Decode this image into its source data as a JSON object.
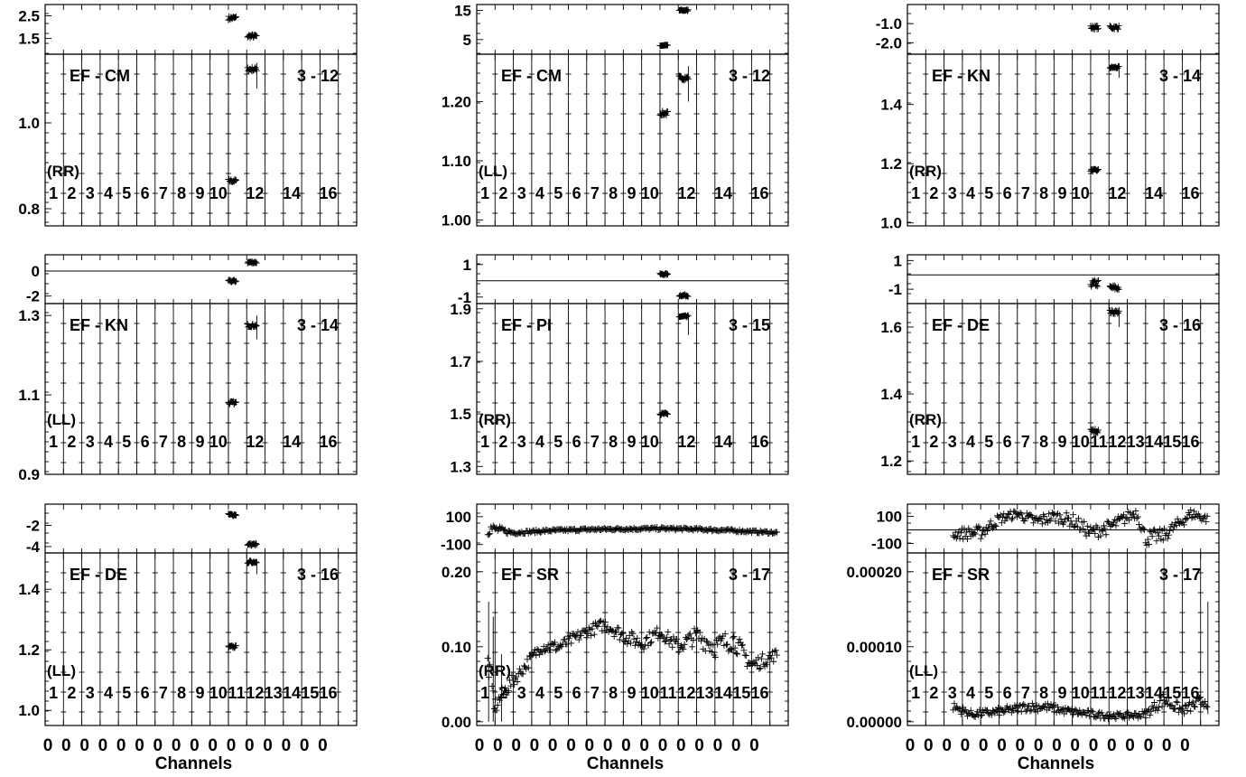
{
  "channel_labels_full": [
    "1",
    "2",
    "3",
    "4",
    "5",
    "6",
    "7",
    "8",
    "9",
    "10",
    "11",
    "12",
    "13",
    "14",
    "15",
    "16"
  ],
  "channel_labels_sparse": [
    "1",
    "2",
    "3",
    "4",
    "5",
    "6",
    "7",
    "8",
    "9",
    "10",
    "",
    "12",
    "",
    "14",
    "",
    "16"
  ],
  "bottom_ticks": [
    "0",
    "0",
    "0",
    "0",
    "0",
    "0",
    "0",
    "0",
    "0",
    "0",
    "0",
    "0",
    "0",
    "0",
    "0",
    "0"
  ],
  "x_axis_title": "Channels",
  "chart_data": [
    {
      "type": "scatter",
      "id": "p00",
      "baseline": "EF - CM",
      "scan": "3 - 12",
      "pol": "(RR)",
      "channel_labels": "sparse",
      "phase_ticks": [
        {
          "v": 2.5,
          "t": "2.5"
        },
        {
          "v": 1.5,
          "t": "1.5"
        }
      ],
      "phase_ylim": [
        0.8,
        3.0
      ],
      "amp_ticks": [
        {
          "v": 1.0,
          "t": "1.0"
        },
        {
          "v": 0.8,
          "t": "0.8"
        }
      ],
      "amp_ylim": [
        0.76,
        1.16
      ],
      "series_phase": [
        {
          "ch": [
            10,
            10.45
          ],
          "v": 2.4,
          "jit": 0.09
        },
        {
          "ch": [
            11.05,
            11.55
          ],
          "v": 1.6,
          "jit": 0.08
        }
      ],
      "series_amp": [
        {
          "ch": [
            10,
            10.45
          ],
          "v": 0.865,
          "jit": 0.004
        },
        {
          "ch": [
            11.05,
            11.55
          ],
          "v": 1.125,
          "jit": 0.005
        }
      ],
      "spikes": [
        {
          "ch": 10,
          "lo": 0.76,
          "hi": 1.16
        },
        {
          "ch": 11.55,
          "lo": 1.08,
          "hi": 1.14
        }
      ]
    },
    {
      "type": "scatter",
      "id": "p01",
      "baseline": "EF - CM",
      "scan": "3 - 12",
      "pol": "(LL)",
      "channel_labels": "sparse",
      "phase_ticks": [
        {
          "v": 15,
          "t": "15"
        },
        {
          "v": 5,
          "t": "5"
        }
      ],
      "phase_ylim": [
        0,
        17
      ],
      "amp_ticks": [
        {
          "v": 1.2,
          "t": "1.20"
        },
        {
          "v": 1.1,
          "t": "1.10"
        },
        {
          "v": 1.0,
          "t": "1.00"
        }
      ],
      "amp_ylim": [
        0.99,
        1.28
      ],
      "series_phase": [
        {
          "ch": [
            10,
            10.45
          ],
          "v": 3,
          "jit": 0.3
        },
        {
          "ch": [
            11.05,
            11.55
          ],
          "v": 15,
          "jit": 0.3
        }
      ],
      "series_amp": [
        {
          "ch": [
            10,
            10.45
          ],
          "v": 1.18,
          "jit": 0.004
        },
        {
          "ch": [
            11.05,
            11.55
          ],
          "v": 1.24,
          "jit": 0.004
        }
      ],
      "spikes": [
        {
          "ch": 10,
          "lo": 0.99,
          "hi": 1.28
        },
        {
          "ch": 11.55,
          "lo": 1.2,
          "hi": 1.26
        }
      ]
    },
    {
      "type": "scatter",
      "id": "p02",
      "baseline": "EF - KN",
      "scan": "3 - 14",
      "pol": "(RR)",
      "channel_labels": "sparse",
      "phase_ticks": [
        {
          "v": -1.0,
          "t": "-1.0"
        },
        {
          "v": -2.0,
          "t": "-2.0"
        }
      ],
      "phase_ylim": [
        -2.6,
        0.0
      ],
      "amp_ticks": [
        {
          "v": 1.4,
          "t": "1.4"
        },
        {
          "v": 1.2,
          "t": "1.2"
        },
        {
          "v": 1.0,
          "t": "1.0"
        }
      ],
      "amp_ylim": [
        0.99,
        1.57
      ],
      "series_phase": [
        {
          "ch": [
            10,
            10.45
          ],
          "v": -1.2,
          "jit": 0.1
        },
        {
          "ch": [
            11.05,
            11.55
          ],
          "v": -1.2,
          "jit": 0.1
        }
      ],
      "series_amp": [
        {
          "ch": [
            10,
            10.45
          ],
          "v": 1.178,
          "jit": 0.004
        },
        {
          "ch": [
            11.05,
            11.55
          ],
          "v": 1.525,
          "jit": 0.004
        }
      ],
      "spikes": [
        {
          "ch": 10,
          "lo": 0.99,
          "hi": 1.1
        },
        {
          "ch": 11.55,
          "lo": 1.49,
          "hi": 1.54
        }
      ]
    },
    {
      "type": "scatter",
      "id": "p10",
      "baseline": "EF - KN",
      "scan": "3 - 14",
      "pol": "(LL)",
      "channel_labels": "sparse",
      "phase_ticks": [
        {
          "v": 0,
          "t": "0"
        },
        {
          "v": -2,
          "t": "-2"
        }
      ],
      "phase_ylim": [
        -2.6,
        1.3
      ],
      "phase_zero": 0,
      "amp_ticks": [
        {
          "v": 1.3,
          "t": "1.3"
        },
        {
          "v": 1.1,
          "t": "1.1"
        },
        {
          "v": 0.9,
          "t": "0.9"
        }
      ],
      "amp_ylim": [
        0.9,
        1.33
      ],
      "series_phase": [
        {
          "ch": [
            10,
            10.45
          ],
          "v": -0.8,
          "jit": 0.1
        },
        {
          "ch": [
            11.05,
            11.55
          ],
          "v": 0.7,
          "jit": 0.1
        }
      ],
      "series_amp": [
        {
          "ch": [
            10,
            10.45
          ],
          "v": 1.08,
          "jit": 0.004
        },
        {
          "ch": [
            11.05,
            11.55
          ],
          "v": 1.275,
          "jit": 0.004
        }
      ],
      "spikes": [
        {
          "ch": 10,
          "lo": 0.9,
          "hi": 1.33
        },
        {
          "ch": 11.55,
          "lo": 1.24,
          "hi": 1.3
        }
      ]
    },
    {
      "type": "scatter",
      "id": "p11",
      "baseline": "EF - PI",
      "scan": "3 - 15",
      "pol": "(RR)",
      "channel_labels": "sparse",
      "phase_ticks": [
        {
          "v": 1,
          "t": "1"
        },
        {
          "v": -1,
          "t": "-1"
        }
      ],
      "phase_ylim": [
        -1.4,
        1.6
      ],
      "phase_zero": 0,
      "amp_ticks": [
        {
          "v": 1.9,
          "t": "1.9"
        },
        {
          "v": 1.7,
          "t": "1.7"
        },
        {
          "v": 1.5,
          "t": "1.5"
        },
        {
          "v": 1.3,
          "t": "1.3"
        }
      ],
      "amp_ylim": [
        1.27,
        1.92
      ],
      "series_phase": [
        {
          "ch": [
            10,
            10.45
          ],
          "v": 0.4,
          "jit": 0.06
        },
        {
          "ch": [
            11.05,
            11.55
          ],
          "v": -0.9,
          "jit": 0.06
        }
      ],
      "series_amp": [
        {
          "ch": [
            10,
            10.45
          ],
          "v": 1.5,
          "jit": 0.005
        },
        {
          "ch": [
            11.05,
            11.55
          ],
          "v": 1.87,
          "jit": 0.005
        }
      ],
      "spikes": [
        {
          "ch": 10,
          "lo": 1.27,
          "hi": 1.92
        },
        {
          "ch": 11.55,
          "lo": 1.8,
          "hi": 1.88
        }
      ]
    },
    {
      "type": "scatter",
      "id": "p12",
      "baseline": "EF - DE",
      "scan": "3 - 16",
      "pol": "(RR)",
      "channel_labels": "full",
      "phase_ticks": [
        {
          "v": 1,
          "t": "1"
        },
        {
          "v": -1,
          "t": "-1"
        }
      ],
      "phase_ylim": [
        -2.0,
        1.4
      ],
      "phase_zero": 0,
      "amp_ticks": [
        {
          "v": 1.6,
          "t": "1.6"
        },
        {
          "v": 1.4,
          "t": "1.4"
        },
        {
          "v": 1.2,
          "t": "1.2"
        }
      ],
      "amp_ylim": [
        1.16,
        1.67
      ],
      "series_phase": [
        {
          "ch": [
            10,
            10.45
          ],
          "v": -0.6,
          "jit": 0.25
        },
        {
          "ch": [
            11.05,
            11.55
          ],
          "v": -0.9,
          "jit": 0.2
        }
      ],
      "series_amp": [
        {
          "ch": [
            10,
            10.45
          ],
          "v": 1.29,
          "jit": 0.006
        },
        {
          "ch": [
            11.05,
            11.55
          ],
          "v": 1.645,
          "jit": 0.006
        }
      ],
      "spikes": [
        {
          "ch": 10,
          "lo": 1.16,
          "hi": 1.3
        },
        {
          "ch": 11.55,
          "lo": 1.6,
          "hi": 1.66
        }
      ]
    },
    {
      "type": "scatter",
      "id": "p20",
      "baseline": "EF - DE",
      "scan": "3 - 16",
      "pol": "(LL)",
      "channel_labels": "full",
      "phase_ticks": [
        {
          "v": -2,
          "t": "-2"
        },
        {
          "v": -4,
          "t": "-4"
        }
      ],
      "phase_ylim": [
        -4.6,
        0.0
      ],
      "amp_ticks": [
        {
          "v": 1.4,
          "t": "1.4"
        },
        {
          "v": 1.2,
          "t": "1.2"
        },
        {
          "v": 1.0,
          "t": "1.0"
        }
      ],
      "amp_ylim": [
        0.95,
        1.52
      ],
      "series_phase": [
        {
          "ch": [
            10,
            10.45
          ],
          "v": -1.0,
          "jit": 0.12
        },
        {
          "ch": [
            11.05,
            11.55
          ],
          "v": -3.8,
          "jit": 0.12
        }
      ],
      "series_amp": [
        {
          "ch": [
            10,
            10.45
          ],
          "v": 1.21,
          "jit": 0.004
        },
        {
          "ch": [
            11.05,
            11.55
          ],
          "v": 1.49,
          "jit": 0.004
        }
      ],
      "spikes": [
        {
          "ch": 10,
          "lo": 0.95,
          "hi": 1.52
        },
        {
          "ch": 11.55,
          "lo": 1.45,
          "hi": 1.5
        }
      ]
    },
    {
      "type": "scatter",
      "id": "p21",
      "baseline": "EF - SR",
      "scan": "3 - 17",
      "pol": "(RR)",
      "channel_labels": "full",
      "phase_ticks": [
        {
          "v": 100,
          "t": "100"
        },
        {
          "v": -100,
          "t": "-100"
        }
      ],
      "phase_ylim": [
        -160,
        190
      ],
      "amp_ticks": [
        {
          "v": 0.2,
          "t": "0.20"
        },
        {
          "v": 0.1,
          "t": "0.10"
        },
        {
          "v": 0.0,
          "t": "0.00"
        }
      ],
      "amp_ylim": [
        -0.005,
        0.225
      ],
      "phase_profile": [
        [
          0.6,
          20,
          55
        ],
        [
          1,
          10,
          30
        ],
        [
          2,
          -15,
          12
        ],
        [
          4,
          0,
          10
        ],
        [
          6,
          8,
          10
        ],
        [
          8,
          12,
          10
        ],
        [
          10,
          15,
          10
        ],
        [
          12,
          10,
          10
        ],
        [
          14,
          0,
          10
        ],
        [
          16.4,
          -15,
          10
        ]
      ],
      "amp_profile": [
        [
          0.6,
          0.08,
          0.018
        ],
        [
          1,
          0.02,
          0.012
        ],
        [
          1.5,
          0.04,
          0.01
        ],
        [
          2.5,
          0.07,
          0.008
        ],
        [
          3.5,
          0.1,
          0.008
        ],
        [
          4.5,
          0.1,
          0.008
        ],
        [
          6,
          0.12,
          0.008
        ],
        [
          7,
          0.13,
          0.008
        ],
        [
          8,
          0.115,
          0.01
        ],
        [
          9,
          0.105,
          0.01
        ],
        [
          10,
          0.12,
          0.008
        ],
        [
          11,
          0.1,
          0.01
        ],
        [
          12,
          0.115,
          0.012
        ],
        [
          13,
          0.1,
          0.015
        ],
        [
          14,
          0.11,
          0.014
        ],
        [
          15,
          0.075,
          0.01
        ],
        [
          16.4,
          0.09,
          0.008
        ]
      ],
      "spikes": [
        {
          "ch": 0.65,
          "lo": 0.0,
          "hi": 0.16
        },
        {
          "ch": 0.9,
          "lo": 0.0,
          "hi": 0.14
        },
        {
          "ch": 1.35,
          "lo": 0.0,
          "hi": 0.09
        }
      ]
    },
    {
      "type": "scatter",
      "id": "p22",
      "baseline": "EF - SR",
      "scan": "3 - 17",
      "pol": "(LL)",
      "channel_labels": "full",
      "phase_ticks": [
        {
          "v": 100,
          "t": "100"
        },
        {
          "v": -100,
          "t": "-100"
        }
      ],
      "phase_ylim": [
        -170,
        190
      ],
      "phase_zero": 0,
      "amp_ticks": [
        {
          "v": 0.0002,
          "t": "0.00020"
        },
        {
          "v": 0.0001,
          "t": "0.00010"
        },
        {
          "v": 0.0,
          "t": "0.00000"
        }
      ],
      "amp_ylim": [
        -5e-06,
        0.000225
      ],
      "phase_profile": [
        [
          2.5,
          -30,
          40
        ],
        [
          4,
          -20,
          50
        ],
        [
          5,
          80,
          40
        ],
        [
          6,
          120,
          30
        ],
        [
          7,
          60,
          50
        ],
        [
          8,
          100,
          40
        ],
        [
          9,
          70,
          50
        ],
        [
          10,
          -20,
          50
        ],
        [
          11,
          20,
          50
        ],
        [
          12.5,
          130,
          40
        ],
        [
          13,
          -60,
          60
        ],
        [
          14,
          -40,
          50
        ],
        [
          15.5,
          120,
          40
        ],
        [
          16.4,
          80,
          30
        ]
      ],
      "amp_profile": [
        [
          2.5,
          2e-05,
          6e-06
        ],
        [
          3.5,
          1e-05,
          5e-06
        ],
        [
          4.5,
          1.2e-05,
          5e-06
        ],
        [
          5.5,
          1.5e-05,
          6e-06
        ],
        [
          6.5,
          2e-05,
          6e-06
        ],
        [
          7.5,
          2e-05,
          6e-06
        ],
        [
          8.5,
          1.5e-05,
          5e-06
        ],
        [
          10,
          1e-05,
          5e-06
        ],
        [
          11,
          8e-06,
          4e-06
        ],
        [
          12,
          8e-06,
          4e-06
        ],
        [
          13,
          1e-05,
          5e-06
        ],
        [
          14,
          3e-05,
          1e-05
        ],
        [
          15,
          1.5e-05,
          6e-06
        ],
        [
          16.4,
          3e-05,
          1e-05
        ]
      ],
      "spikes": [
        {
          "ch": 16.4,
          "lo": 1e-05,
          "hi": 0.00016
        }
      ]
    }
  ]
}
